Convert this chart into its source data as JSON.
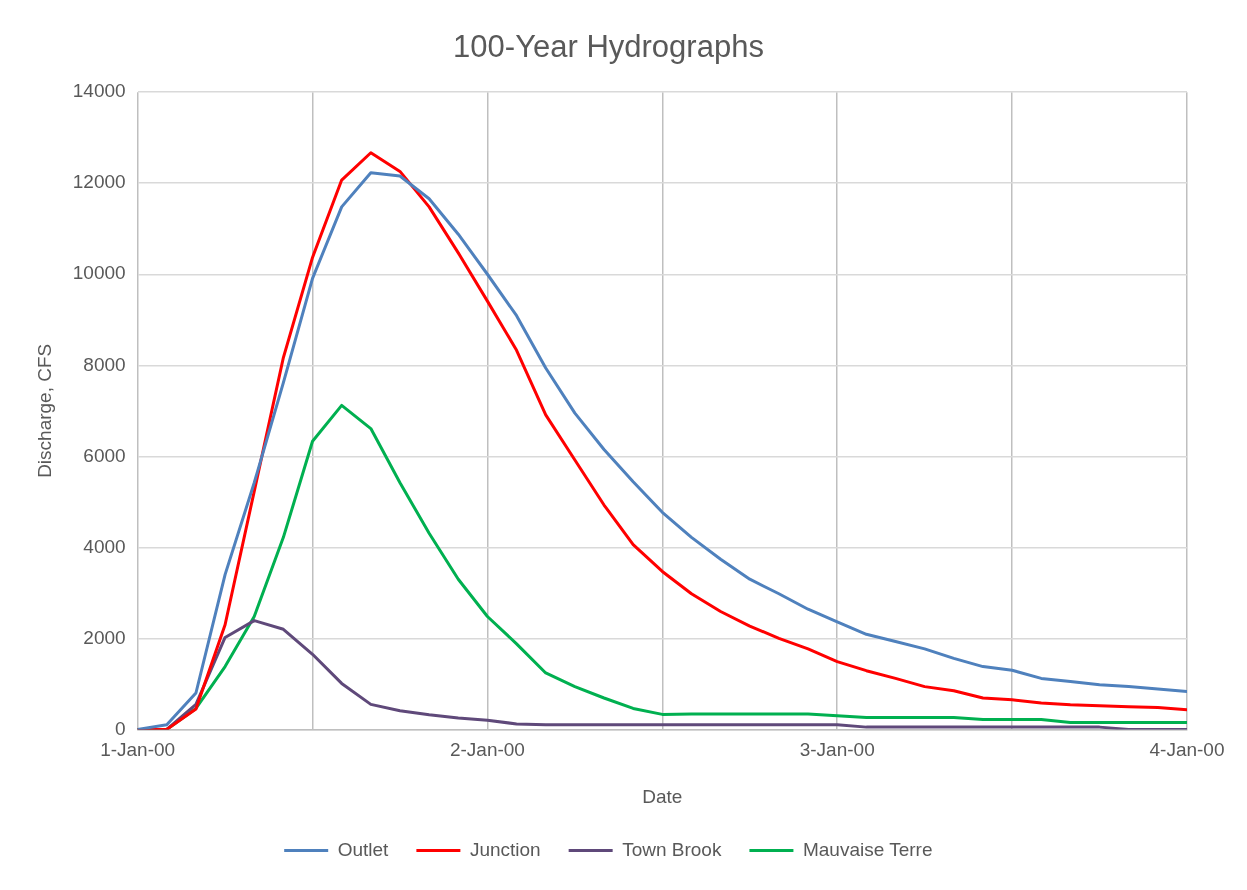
{
  "chart_data": {
    "type": "line",
    "title": "100-Year Hydrographs",
    "xlabel": "Date",
    "ylabel": "Discharge, CFS",
    "x": [
      "2000-01-01T00:00",
      "2000-01-01T02:00",
      "2000-01-01T04:00",
      "2000-01-01T06:00",
      "2000-01-01T08:00",
      "2000-01-01T10:00",
      "2000-01-01T12:00",
      "2000-01-01T14:00",
      "2000-01-01T16:00",
      "2000-01-01T18:00",
      "2000-01-01T20:00",
      "2000-01-01T22:00",
      "2000-01-02T00:00",
      "2000-01-02T02:00",
      "2000-01-02T04:00",
      "2000-01-02T06:00",
      "2000-01-02T08:00",
      "2000-01-02T10:00",
      "2000-01-02T12:00",
      "2000-01-02T14:00",
      "2000-01-02T16:00",
      "2000-01-02T18:00",
      "2000-01-02T20:00",
      "2000-01-02T22:00",
      "2000-01-03T00:00",
      "2000-01-03T02:00",
      "2000-01-03T04:00",
      "2000-01-03T06:00",
      "2000-01-03T08:00",
      "2000-01-03T10:00",
      "2000-01-03T12:00",
      "2000-01-03T14:00",
      "2000-01-03T16:00",
      "2000-01-03T18:00",
      "2000-01-03T20:00",
      "2000-01-03T22:00",
      "2000-01-04T00:00"
    ],
    "series": [
      {
        "name": "Outlet",
        "color": "#4f81bd",
        "values": [
          0,
          100,
          800,
          3400,
          5420,
          7620,
          9910,
          11480,
          12230,
          12160,
          11660,
          10880,
          10000,
          9090,
          7940,
          6950,
          6150,
          5440,
          4770,
          4220,
          3740,
          3300,
          2980,
          2640,
          2360,
          2090,
          1930,
          1770,
          1560,
          1380,
          1300,
          1120,
          1050,
          980,
          940,
          890,
          830
        ]
      },
      {
        "name": "Junction",
        "color": "#ff0000",
        "values": [
          0,
          0,
          450,
          2300,
          5230,
          8170,
          10370,
          12070,
          12670,
          12260,
          11480,
          10470,
          9410,
          8330,
          6910,
          5920,
          4930,
          4060,
          3470,
          2980,
          2590,
          2270,
          2000,
          1770,
          1490,
          1290,
          1120,
          940,
          850,
          690,
          650,
          580,
          540,
          520,
          500,
          480,
          430
        ]
      },
      {
        "name": "Town Brook",
        "color": "#5f497a",
        "values": [
          0,
          0,
          550,
          2020,
          2390,
          2200,
          1650,
          1010,
          550,
          410,
          320,
          250,
          200,
          120,
          100,
          100,
          100,
          100,
          100,
          100,
          100,
          100,
          100,
          100,
          100,
          50,
          50,
          50,
          50,
          50,
          50,
          50,
          50,
          50,
          0,
          0,
          0
        ]
      },
      {
        "name": "Mauvaise Terre",
        "color": "#00b050",
        "values": [
          0,
          0,
          460,
          1380,
          2480,
          4220,
          6330,
          7120,
          6610,
          5420,
          4310,
          3300,
          2480,
          1880,
          1240,
          940,
          690,
          460,
          330,
          340,
          340,
          340,
          340,
          340,
          300,
          260,
          260,
          260,
          260,
          220,
          220,
          220,
          150,
          150,
          150,
          150,
          150
        ]
      }
    ],
    "xlim": [
      "2000-01-01",
      "2000-01-04"
    ],
    "xticks": [
      {
        "value": "2000-01-01",
        "label": "1-Jan-00"
      },
      {
        "value": "2000-01-01T12:00",
        "label": null
      },
      {
        "value": "2000-01-02",
        "label": "2-Jan-00"
      },
      {
        "value": "2000-01-02T12:00",
        "label": null
      },
      {
        "value": "2000-01-03",
        "label": "3-Jan-00"
      },
      {
        "value": "2000-01-03T12:00",
        "label": null
      },
      {
        "value": "2000-01-04",
        "label": "4-Jan-00"
      }
    ],
    "ylim": [
      0,
      14000
    ],
    "yticks": [
      0,
      2000,
      4000,
      6000,
      8000,
      10000,
      12000,
      14000
    ],
    "grid": true,
    "legend": "bottom",
    "marker": "none",
    "line_style": "solid"
  }
}
